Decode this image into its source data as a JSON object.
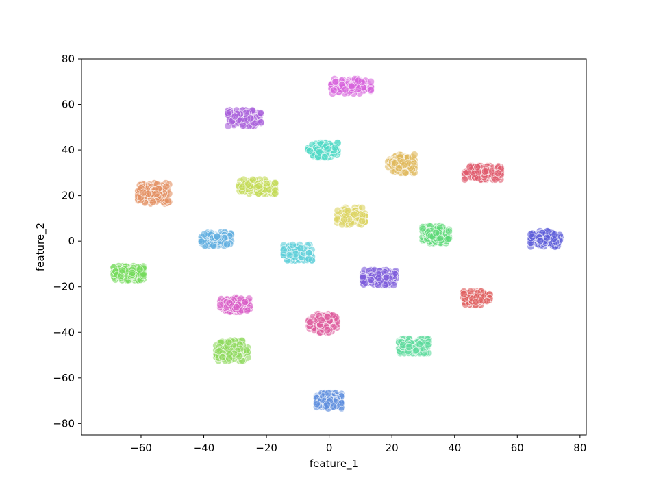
{
  "chart_data": {
    "type": "scatter",
    "title": "",
    "xlabel": "feature_1",
    "ylabel": "feature_2",
    "xlim": [
      -79,
      82
    ],
    "ylim": [
      -85,
      80
    ],
    "xticks": [
      -60,
      -40,
      -20,
      0,
      20,
      40,
      60,
      80
    ],
    "yticks": [
      -80,
      -60,
      -40,
      -20,
      0,
      20,
      40,
      60,
      80
    ],
    "xtick_labels": [
      "−60",
      "−40",
      "−20",
      "0",
      "20",
      "40",
      "60",
      "80"
    ],
    "ytick_labels": [
      "−80",
      "−60",
      "−40",
      "−20",
      "0",
      "20",
      "40",
      "60",
      "80"
    ],
    "grid": false,
    "legend": "none",
    "clusters": [
      {
        "center": [
          7,
          68
        ],
        "spread": [
          6,
          3
        ],
        "color": "#d763dc"
      },
      {
        "center": [
          -27,
          54
        ],
        "spread": [
          5,
          3.3
        ],
        "color": "#a95fda"
      },
      {
        "center": [
          -2,
          40
        ],
        "spread": [
          4.5,
          3
        ],
        "color": "#4ed8c4"
      },
      {
        "center": [
          23,
          34
        ],
        "spread": [
          4,
          3.8
        ],
        "color": "#e0b85a"
      },
      {
        "center": [
          49,
          30
        ],
        "spread": [
          5.5,
          2.8
        ],
        "color": "#e05a6d"
      },
      {
        "center": [
          -56,
          21
        ],
        "spread": [
          4.7,
          4.2
        ],
        "color": "#e28e5f"
      },
      {
        "center": [
          -23,
          24
        ],
        "spread": [
          5.5,
          2.9
        ],
        "color": "#c3da55"
      },
      {
        "center": [
          7,
          11
        ],
        "spread": [
          4.2,
          3.5
        ],
        "color": "#dcd463"
      },
      {
        "center": [
          34,
          3
        ],
        "spread": [
          4,
          3.6
        ],
        "color": "#5bd977"
      },
      {
        "center": [
          69,
          1
        ],
        "spread": [
          4.5,
          3.2
        ],
        "color": "#5b5cd9"
      },
      {
        "center": [
          -36,
          1
        ],
        "spread": [
          4.5,
          2.8
        ],
        "color": "#5fade0"
      },
      {
        "center": [
          -10,
          -5
        ],
        "spread": [
          4.3,
          3.2
        ],
        "color": "#5ecfd8"
      },
      {
        "center": [
          -64,
          -14
        ],
        "spread": [
          4.5,
          2.9
        ],
        "color": "#74da5c"
      },
      {
        "center": [
          16,
          -16
        ],
        "spread": [
          5,
          3.1
        ],
        "color": "#7d5cdb"
      },
      {
        "center": [
          47,
          -25
        ],
        "spread": [
          4,
          2.8
        ],
        "color": "#df5f5f"
      },
      {
        "center": [
          -30,
          -28
        ],
        "spread": [
          4.5,
          2.8
        ],
        "color": "#d85bc6"
      },
      {
        "center": [
          -2,
          -36
        ],
        "spread": [
          4.3,
          3.8
        ],
        "color": "#de5b9d"
      },
      {
        "center": [
          -31,
          -48
        ],
        "spread": [
          4.8,
          4.2
        ],
        "color": "#8ed85c"
      },
      {
        "center": [
          27,
          -46
        ],
        "spread": [
          4.5,
          3
        ],
        "color": "#5ddb9d"
      },
      {
        "center": [
          0,
          -70
        ],
        "spread": [
          3.8,
          3.2
        ],
        "color": "#5d8ede"
      }
    ],
    "points_per_cluster": 150
  }
}
